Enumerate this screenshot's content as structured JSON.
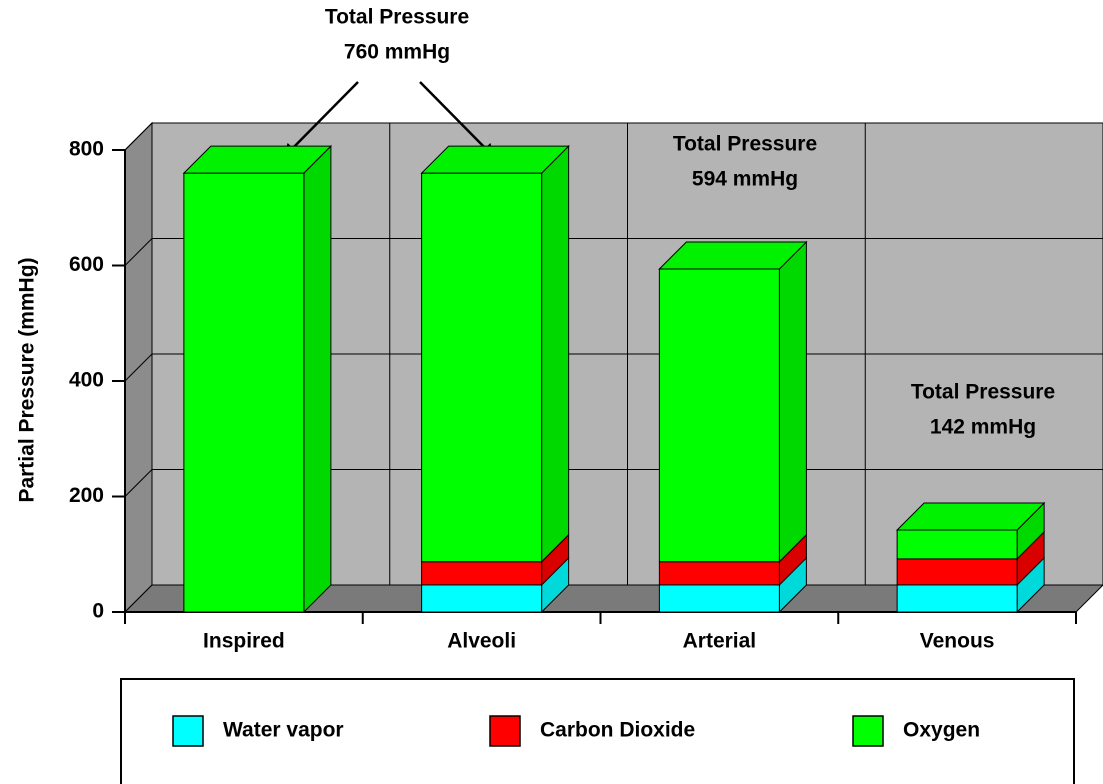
{
  "chart_data": {
    "type": "bar",
    "stacked": true,
    "y_label": "Partial Pressure (mmHg)",
    "categories": [
      "Inspired",
      "Alveoli",
      "Arterial",
      "Venous"
    ],
    "series": [
      {
        "name": "Water vapor",
        "color": "#00ffff",
        "values": [
          0,
          47,
          47,
          47
        ]
      },
      {
        "name": "Carbon Dioxide",
        "color": "#ff0000",
        "values": [
          0,
          40,
          40,
          45
        ]
      },
      {
        "name": "Oxygen",
        "color": "#00ff00",
        "values": [
          760,
          673,
          507,
          50
        ]
      }
    ],
    "ylim": [
      0,
      800
    ],
    "yticks": [
      0,
      200,
      400,
      600,
      800
    ],
    "grid": true,
    "annotations": [
      {
        "lines": [
          "Total Pressure",
          "760 mmHg"
        ]
      },
      {
        "lines": [
          "Total Pressure",
          "594 mmHg"
        ]
      },
      {
        "lines": [
          "Total Pressure",
          "142 mmHg"
        ]
      }
    ]
  }
}
